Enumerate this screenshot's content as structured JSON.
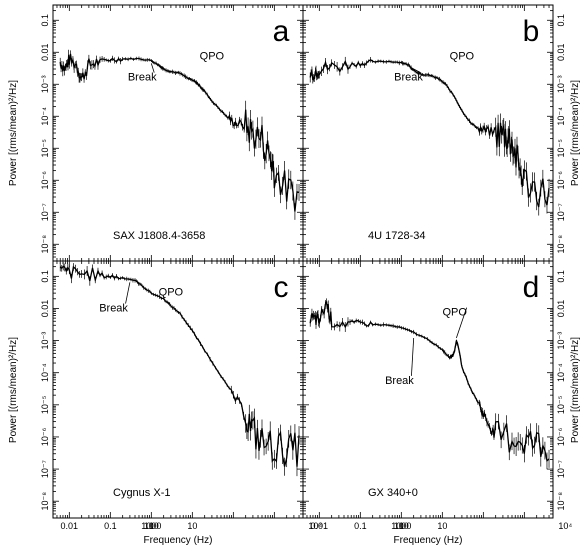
{
  "figure": {
    "xlabel": "Frequency (Hz)",
    "ylabel": "Power [(rms/mean)²/Hz]"
  },
  "chart_data": [
    {
      "type": "line",
      "panel_letter": "a",
      "source_label": "SAX J1808.4-3658",
      "xlabel": "Frequency (Hz)",
      "ylabel": "Power [(rms/mean)²/Hz]",
      "xscale": "log",
      "yscale": "log",
      "xlim": [
        0.004,
        5000
      ],
      "ylim": [
        3e-09,
        0.3
      ],
      "x_ticks": [
        "0.01",
        "0.1",
        "1",
        "10",
        "100",
        "1000",
        "10⁴"
      ],
      "y_ticks": [
        "10⁻⁸",
        "10⁻⁷",
        "10⁻⁶",
        "10⁻⁵",
        "10⁻⁴",
        "10⁻³",
        "0.01",
        "0.1"
      ],
      "x": [
        0.006,
        0.008,
        0.01,
        0.015,
        0.02,
        0.03,
        0.05,
        0.1,
        0.2,
        0.5,
        1,
        1.5,
        2,
        3,
        5,
        8,
        12,
        15,
        20,
        30,
        50,
        80,
        120,
        200,
        300,
        500,
        800,
        1000,
        2000,
        4000
      ],
      "y": [
        0.005,
        0.003,
        0.006,
        0.004,
        0.0015,
        0.004,
        0.005,
        0.006,
        0.0062,
        0.0063,
        0.0055,
        0.004,
        0.003,
        0.0025,
        0.0022,
        0.0015,
        0.0012,
        0.0009,
        0.0006,
        0.0003,
        0.00015,
        8e-05,
        6e-05,
        5e-05,
        3e-05,
        2e-05,
        5e-06,
        2e-06,
        5e-07,
        3e-07
      ],
      "annotations": [
        {
          "text": "Break",
          "x": 0.6,
          "y": 0.0013,
          "point_x": 1.0,
          "point_y": 0.0045
        },
        {
          "text": "QPO",
          "x": 30,
          "y": 0.006
        }
      ]
    },
    {
      "type": "line",
      "panel_letter": "b",
      "source_label": "4U 1728-34",
      "xlabel": "Frequency (Hz)",
      "ylabel": "Power [(rms/mean)²/Hz]",
      "xscale": "log",
      "yscale": "log",
      "xlim": [
        0.004,
        5000
      ],
      "ylim": [
        3e-09,
        0.3
      ],
      "x_ticks": [
        "0.01",
        "0.1",
        "1",
        "10",
        "100",
        "1000",
        "10⁴"
      ],
      "y_ticks": [
        "10⁻⁸",
        "10⁻⁷",
        "10⁻⁶",
        "10⁻⁵",
        "10⁻⁴",
        "10⁻³",
        "0.01",
        "0.1"
      ],
      "x": [
        0.006,
        0.008,
        0.01,
        0.02,
        0.05,
        0.1,
        0.2,
        0.5,
        1,
        1.5,
        2,
        3,
        5,
        8,
        12,
        20,
        30,
        50,
        80,
        120,
        200,
        300,
        400,
        500,
        700,
        1000,
        2000,
        4000
      ],
      "y": [
        0.002,
        0.0025,
        0.003,
        0.0035,
        0.004,
        0.0045,
        0.005,
        0.0052,
        0.0048,
        0.004,
        0.0028,
        0.002,
        0.0019,
        0.0015,
        0.001,
        0.0004,
        0.00015,
        6e-05,
        4e-05,
        3.5e-05,
        3e-05,
        2.8e-05,
        2.5e-05,
        1.5e-05,
        3e-06,
        1e-06,
        5e-07,
        4e-07
      ],
      "annotations": [
        {
          "text": "Break",
          "x": 1.5,
          "y": 0.0013,
          "point_x": 2.0,
          "point_y": 0.003
        },
        {
          "text": "QPO",
          "x": 30,
          "y": 0.006
        }
      ]
    },
    {
      "type": "line",
      "panel_letter": "c",
      "source_label": "Cygnus X-1",
      "xlabel": "Frequency (Hz)",
      "ylabel": "Power [(rms/mean)²/Hz]",
      "xscale": "log",
      "yscale": "log",
      "xlim": [
        0.004,
        5000
      ],
      "ylim": [
        3e-09,
        0.3
      ],
      "x_ticks": [
        "0.01",
        "0.1",
        "1",
        "10",
        "100",
        "1000",
        "10⁴"
      ],
      "y_ticks": [
        "10⁻⁸",
        "10⁻⁷",
        "10⁻⁶",
        "10⁻⁵",
        "10⁻⁴",
        "10⁻³",
        "0.01",
        "0.1"
      ],
      "x": [
        0.006,
        0.01,
        0.02,
        0.05,
        0.1,
        0.2,
        0.4,
        0.6,
        1,
        2,
        3,
        5,
        10,
        20,
        50,
        100,
        200,
        300,
        500,
        1000,
        2000,
        4000
      ],
      "y": [
        0.15,
        0.13,
        0.12,
        0.11,
        0.1,
        0.09,
        0.075,
        0.05,
        0.03,
        0.02,
        0.012,
        0.007,
        0.002,
        0.0005,
        8e-05,
        2e-05,
        5e-06,
        1.5e-06,
        7e-07,
        5e-07,
        4e-07,
        4e-07
      ],
      "annotations": [
        {
          "text": "Break",
          "x": 0.12,
          "y": 0.008,
          "point_x": 0.3,
          "point_y": 0.065
        },
        {
          "text": "QPO",
          "x": 3,
          "y": 0.025
        }
      ]
    },
    {
      "type": "line",
      "panel_letter": "d",
      "source_label": "GX 340+0",
      "xlabel": "Frequency (Hz)",
      "ylabel": "Power [(rms/mean)²/Hz]",
      "xscale": "log",
      "yscale": "log",
      "xlim": [
        0.004,
        5000
      ],
      "ylim": [
        3e-09,
        0.3
      ],
      "x_ticks": [
        "0.01",
        "0.1",
        "1",
        "10",
        "100",
        "1000",
        "10⁴"
      ],
      "y_ticks": [
        "10⁻⁸",
        "10⁻⁷",
        "10⁻⁶",
        "10⁻⁵",
        "10⁻⁴",
        "10⁻³",
        "0.01",
        "0.1"
      ],
      "x": [
        0.006,
        0.008,
        0.01,
        0.015,
        0.02,
        0.05,
        0.1,
        0.2,
        0.5,
        1,
        2,
        5,
        10,
        15,
        18,
        20,
        22,
        25,
        30,
        50,
        80,
        100,
        150,
        200,
        500,
        1000,
        2000,
        4000
      ],
      "y": [
        0.005,
        0.0045,
        0.004,
        0.015,
        0.004,
        0.0035,
        0.0035,
        0.0032,
        0.003,
        0.0025,
        0.0018,
        0.001,
        0.0005,
        0.0003,
        0.00035,
        0.0005,
        0.001,
        0.0006,
        0.00015,
        3e-05,
        1e-05,
        5e-06,
        2e-06,
        1e-06,
        1e-06,
        8e-07,
        6e-07,
        5e-07
      ],
      "annotations": [
        {
          "text": "Break",
          "x": 0.9,
          "y": 4.5e-05,
          "point_x": 2.0,
          "point_y": 0.0012
        },
        {
          "text": "QPO",
          "x": 20,
          "y": 0.006,
          "point_x": 22,
          "point_y": 0.0012
        }
      ]
    }
  ]
}
